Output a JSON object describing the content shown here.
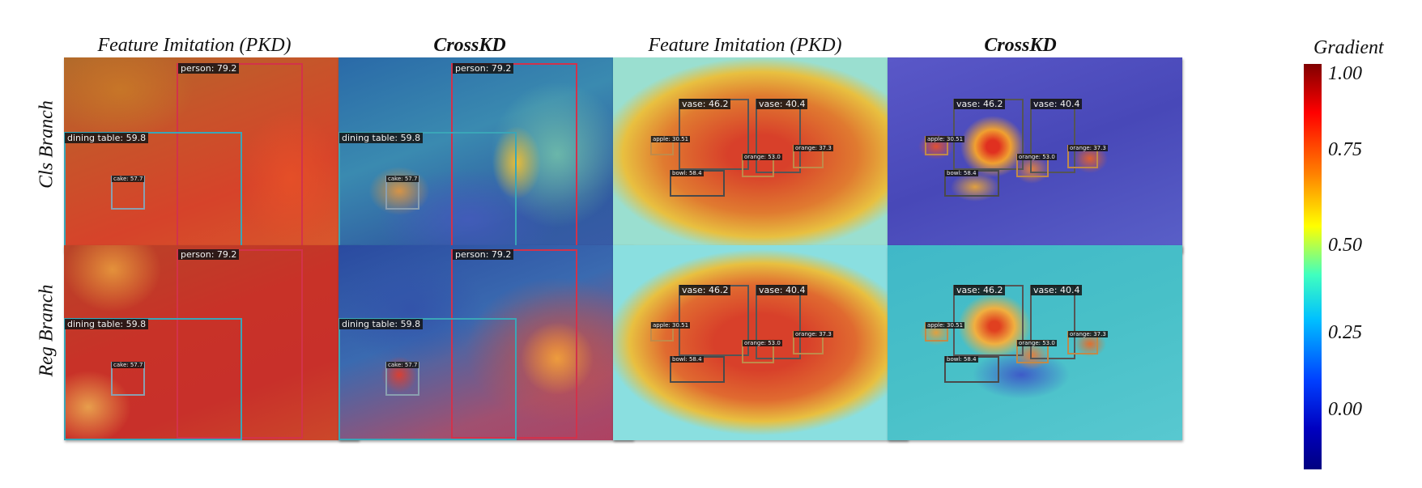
{
  "column_titles": [
    "Feature Imitation (PKD)",
    "CrossKD",
    "Feature Imitation (PKD)",
    "CrossKD"
  ],
  "row_labels": [
    "Cls Branch",
    "Reg Branch"
  ],
  "colorbar": {
    "title": "Gradient",
    "ticks": [
      "1.00",
      "0.75",
      "0.50",
      "0.25",
      "0.00"
    ]
  },
  "scene_child_labels": {
    "person": "person: 79.2",
    "dining_table": "dining table: 59.8",
    "cake": "cake: 57.7"
  },
  "scene_still_life_labels": {
    "vase_1": "vase: 46.2",
    "vase_2": "vase: 40.4",
    "apple": "apple: 30.51",
    "orange_1": "orange: 53.0",
    "orange_2": "orange: 37.3",
    "bowl": "bowl: 58.4"
  },
  "colors": {
    "person_box": "#d2324b",
    "table_box": "#3aa6b8",
    "cake_box": "#8a9fb0",
    "vase_box": "#555555",
    "fruit_box": "#c08a4a",
    "bowl_box": "#4a4a4a"
  }
}
